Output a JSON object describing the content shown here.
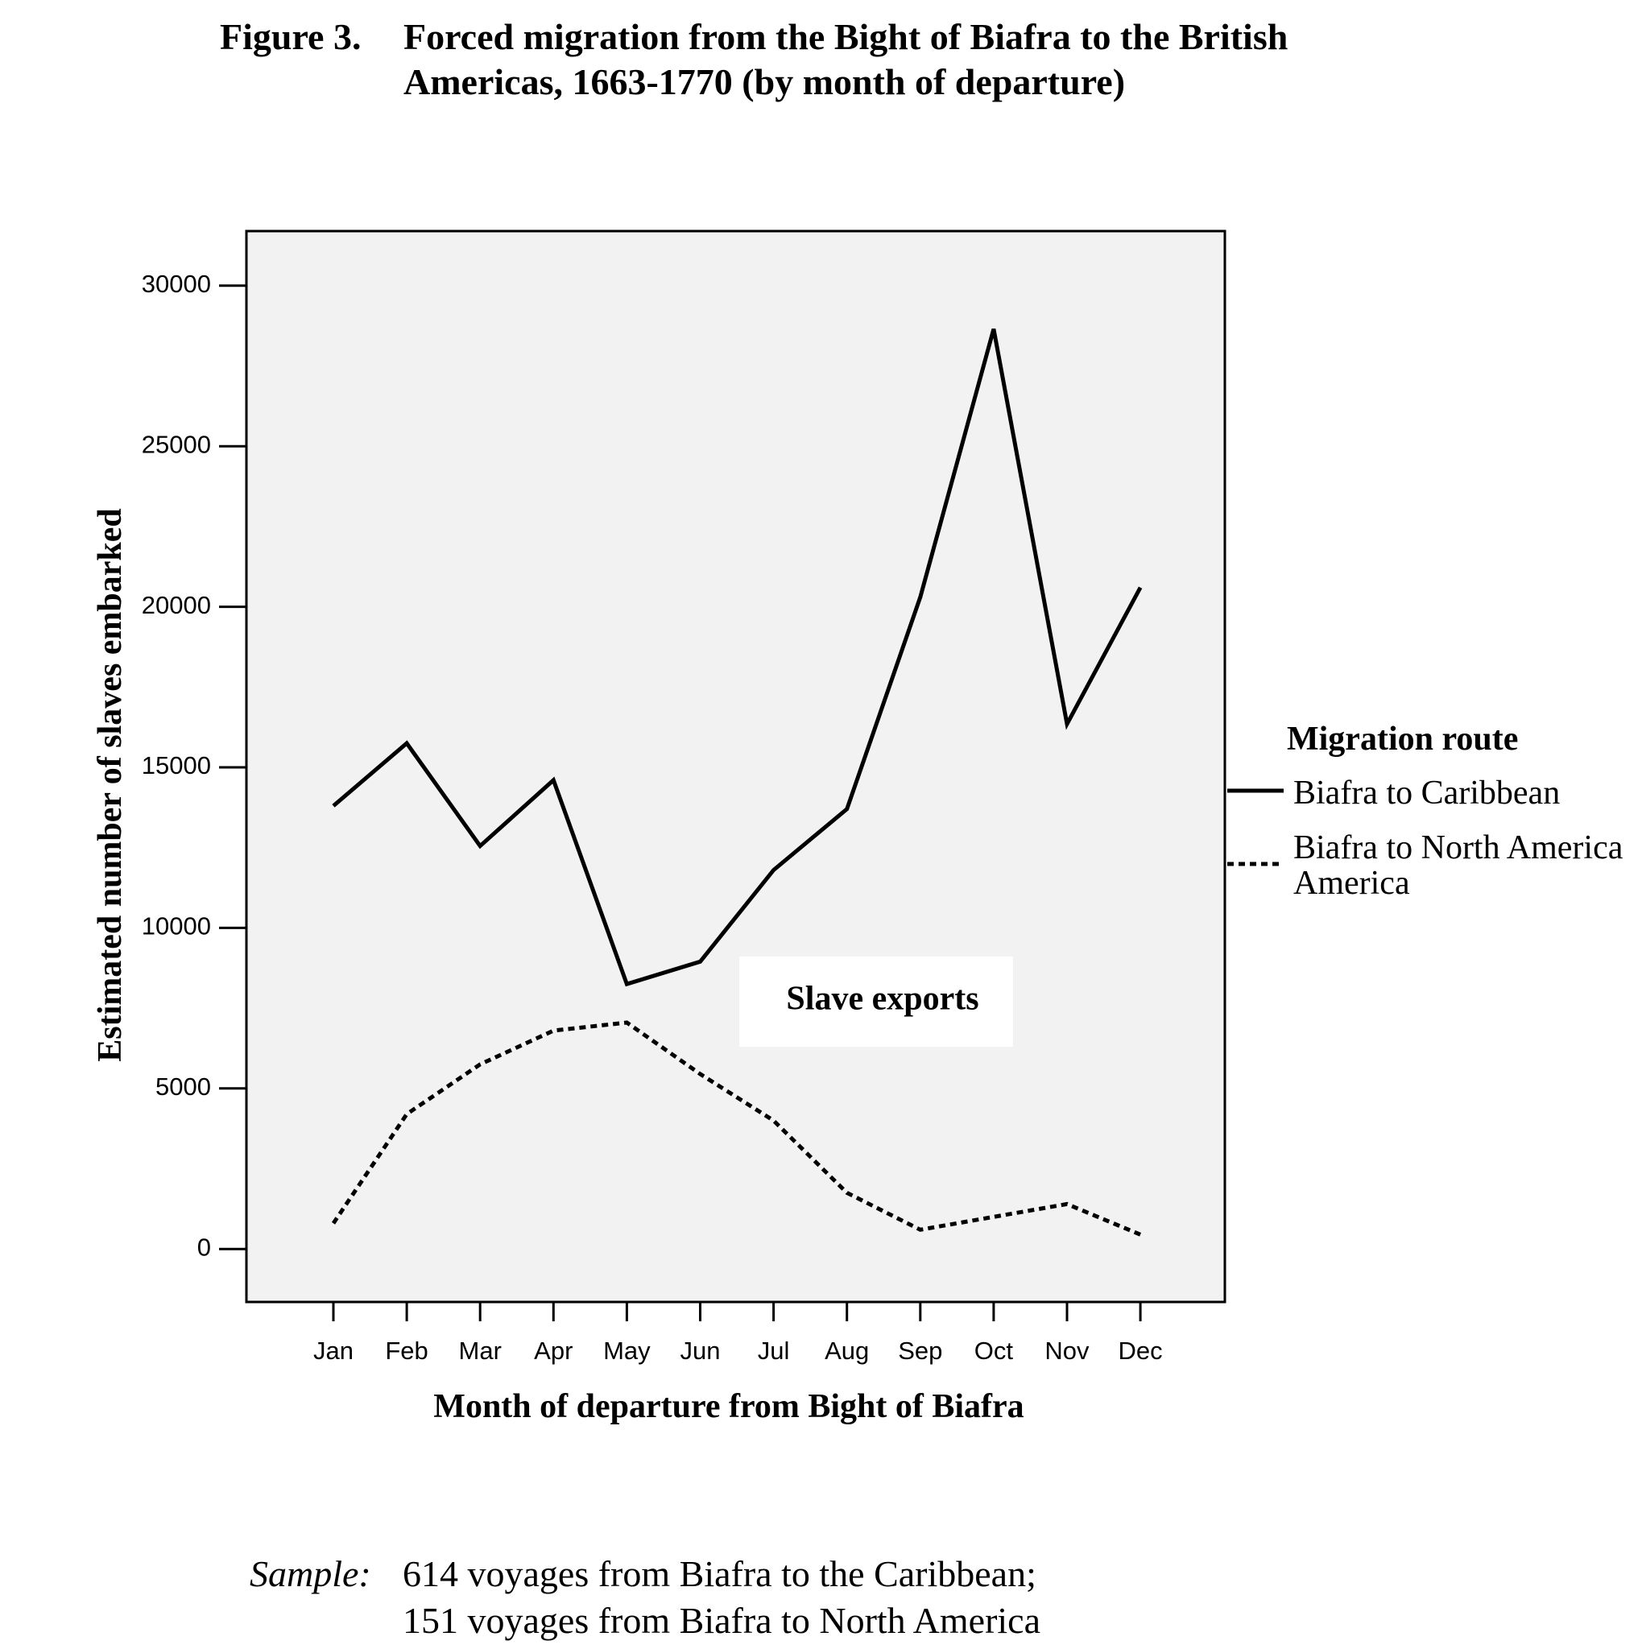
{
  "figure": {
    "number": "Figure 3.",
    "title_line1": "Forced migration from the Bight of Biafra to the British",
    "title_line2": "Americas, 1663-1770 (by month of departure)"
  },
  "chart_data": {
    "type": "line",
    "categories": [
      "Jan",
      "Feb",
      "Mar",
      "Apr",
      "May",
      "Jun",
      "Jul",
      "Aug",
      "Sep",
      "Oct",
      "Nov",
      "Dec"
    ],
    "series": [
      {
        "name": "Biafra to Caribbean",
        "style": "solid",
        "values": [
          13800,
          15750,
          12550,
          14600,
          8250,
          8950,
          11800,
          13700,
          20300,
          28650,
          16350,
          20600
        ]
      },
      {
        "name": "Biafra to North America",
        "style": "dotted",
        "values": [
          800,
          4200,
          5750,
          6800,
          7050,
          5450,
          4000,
          1750,
          600,
          1000,
          1400,
          450
        ]
      }
    ],
    "xlabel": "Month of departure from Bight of Biafra",
    "ylabel": "Estimated number of slaves embarked",
    "ylim": [
      -1650,
      31700
    ],
    "yticks": [
      0,
      5000,
      10000,
      15000,
      20000,
      25000,
      30000
    ],
    "ytick_labels": [
      "0",
      "5000",
      "10000",
      "15000",
      "20000",
      "25000",
      "30000"
    ],
    "grid": false,
    "plot_background": "#f2f2f2",
    "line_color": "#000000",
    "annotation": "Slave exports",
    "legend": {
      "title": "Migration route",
      "placement": "right",
      "line2_extra": "America"
    }
  },
  "sample": {
    "label": "Sample:",
    "line1": "614 voyages from Biafra to the Caribbean;",
    "line2": "151 voyages from Biafra to North America"
  }
}
